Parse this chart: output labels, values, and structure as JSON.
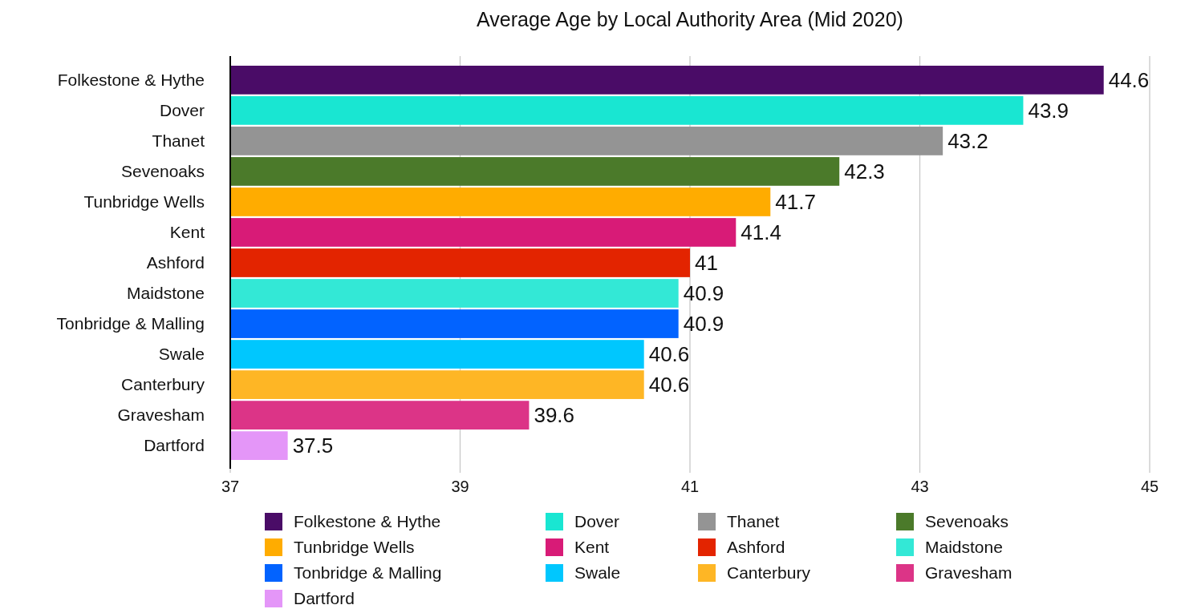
{
  "chart_data": {
    "type": "bar",
    "orientation": "horizontal",
    "title": "Average Age by Local Authority Area (Mid 2020)",
    "categories": [
      "Folkestone & Hythe",
      "Dover",
      "Thanet",
      "Sevenoaks",
      "Tunbridge Wells",
      "Kent",
      "Ashford",
      "Maidstone",
      "Tonbridge & Malling",
      "Swale",
      "Canterbury",
      "Gravesham",
      "Dartford"
    ],
    "series": [
      {
        "name": "Folkestone & Hythe",
        "color": "#4a0c67",
        "values": [
          44.6,
          null,
          null,
          null,
          null,
          null,
          null,
          null,
          null,
          null,
          null,
          null,
          null
        ]
      },
      {
        "name": "Dover",
        "color": "#19e6d2",
        "values": [
          null,
          43.9,
          null,
          null,
          null,
          null,
          null,
          null,
          null,
          null,
          null,
          null,
          null
        ]
      },
      {
        "name": "Thanet",
        "color": "#949494",
        "values": [
          null,
          null,
          43.2,
          null,
          null,
          null,
          null,
          null,
          null,
          null,
          null,
          null,
          null
        ]
      },
      {
        "name": "Sevenoaks",
        "color": "#4b7a2a",
        "values": [
          null,
          null,
          null,
          42.3,
          null,
          null,
          null,
          null,
          null,
          null,
          null,
          null,
          null
        ]
      },
      {
        "name": "Tunbridge Wells",
        "color": "#ffac00",
        "values": [
          null,
          null,
          null,
          null,
          41.7,
          null,
          null,
          null,
          null,
          null,
          null,
          null,
          null
        ]
      },
      {
        "name": "Kent",
        "color": "#d81b77",
        "values": [
          null,
          null,
          null,
          null,
          null,
          41.4,
          null,
          null,
          null,
          null,
          null,
          null,
          null
        ]
      },
      {
        "name": "Ashford",
        "color": "#e32400",
        "values": [
          null,
          null,
          null,
          null,
          null,
          null,
          41,
          null,
          null,
          null,
          null,
          null,
          null
        ]
      },
      {
        "name": "Maidstone",
        "color": "#33e8d6",
        "values": [
          null,
          null,
          null,
          null,
          null,
          null,
          null,
          40.9,
          null,
          null,
          null,
          null,
          null
        ]
      },
      {
        "name": "Tonbridge & Malling",
        "color": "#0263ff",
        "values": [
          null,
          null,
          null,
          null,
          null,
          null,
          null,
          null,
          40.9,
          null,
          null,
          null,
          null
        ]
      },
      {
        "name": "Swale",
        "color": "#00c7fe",
        "values": [
          null,
          null,
          null,
          null,
          null,
          null,
          null,
          null,
          null,
          40.6,
          null,
          null,
          null
        ]
      },
      {
        "name": "Canterbury",
        "color": "#feb625",
        "values": [
          null,
          null,
          null,
          null,
          null,
          null,
          null,
          null,
          null,
          null,
          40.6,
          null,
          null
        ]
      },
      {
        "name": "Gravesham",
        "color": "#dc3487",
        "values": [
          null,
          null,
          null,
          null,
          null,
          null,
          null,
          null,
          null,
          null,
          null,
          39.6,
          null
        ]
      },
      {
        "name": "Dartford",
        "color": "#e496f8",
        "values": [
          null,
          null,
          null,
          null,
          null,
          null,
          null,
          null,
          null,
          null,
          null,
          null,
          37.5
        ]
      }
    ],
    "xlim": [
      37,
      45
    ],
    "xticks": [
      37,
      39,
      41,
      43,
      45
    ],
    "grid": "x",
    "data_labels": true,
    "legend": "bottom"
  }
}
